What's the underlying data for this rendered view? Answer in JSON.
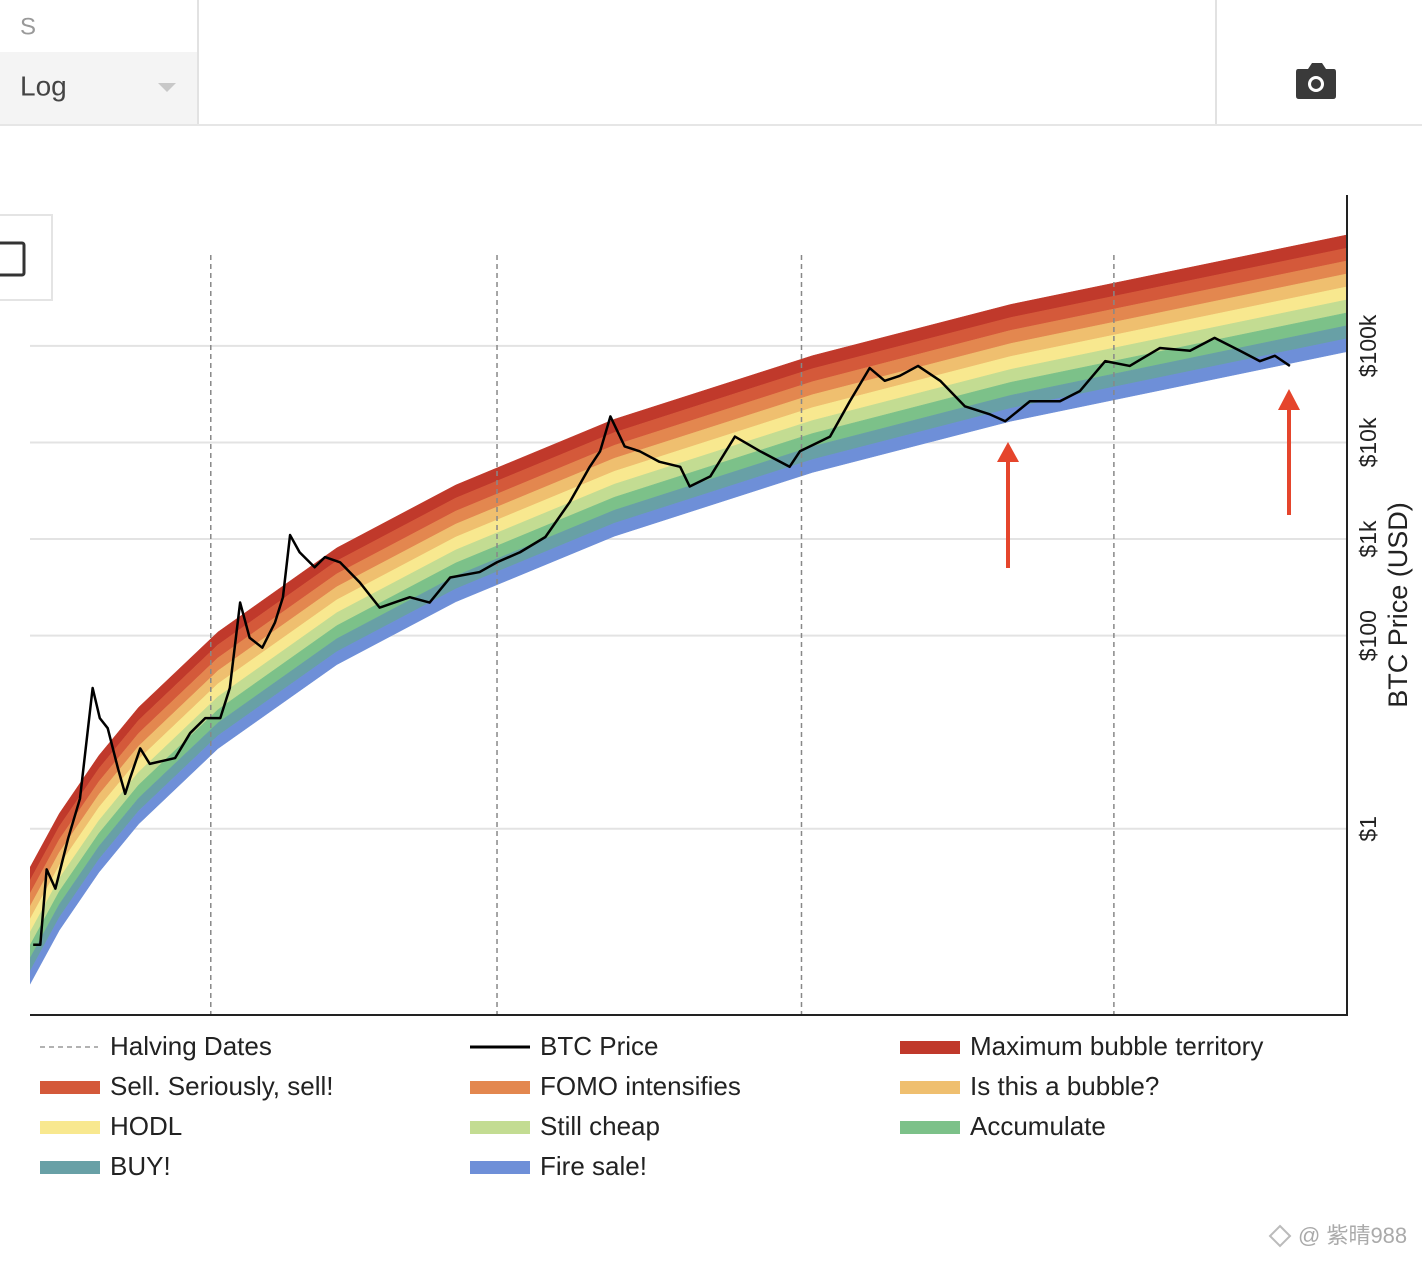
{
  "toolbar": {
    "partial_label": "S",
    "scale_select": "Log"
  },
  "chart_data": {
    "type": "line",
    "y_label": "BTC Price (USD)",
    "yscale": "log",
    "grid": true,
    "xlim": [
      2010.63,
      2027.24
    ],
    "ylim": [
      0.0118,
      3650000
    ],
    "yticks": [
      {
        "value": 1,
        "label": "$1"
      },
      {
        "value": 100,
        "label": "$100"
      },
      {
        "value": 1000,
        "label": "$1k"
      },
      {
        "value": 10000,
        "label": "$10k"
      },
      {
        "value": 100000,
        "label": "$100k"
      }
    ],
    "halvings": {
      "name": "Halving Dates",
      "x": [
        2012.91,
        2016.52,
        2020.36,
        2024.3
      ]
    },
    "series": [
      {
        "name": "BTC Price",
        "color": "#000000",
        "x": [
          2010.67,
          2010.76,
          2010.84,
          2010.95,
          2011.11,
          2011.26,
          2011.42,
          2011.51,
          2011.61,
          2011.74,
          2011.83,
          2011.89,
          2012.02,
          2012.14,
          2012.46,
          2012.65,
          2012.84,
          2013.03,
          2013.15,
          2013.28,
          2013.4,
          2013.56,
          2013.72,
          2013.82,
          2013.91,
          2014.03,
          2014.22,
          2014.35,
          2014.54,
          2014.79,
          2015.04,
          2015.42,
          2015.67,
          2015.93,
          2016.3,
          2016.52,
          2016.81,
          2017.13,
          2017.44,
          2017.69,
          2017.82,
          2017.95,
          2018.13,
          2018.32,
          2018.57,
          2018.83,
          2018.95,
          2019.21,
          2019.52,
          2019.84,
          2020.21,
          2020.34,
          2020.72,
          2020.97,
          2021.22,
          2021.41,
          2021.6,
          2021.83,
          2022.11,
          2022.42,
          2022.74,
          2022.93,
          2023.24,
          2023.62,
          2023.87,
          2024.19,
          2024.5,
          2024.88,
          2025.26,
          2025.57,
          2025.89,
          2026.14,
          2026.33,
          2026.52
        ],
        "values": [
          0.063,
          0.063,
          0.38,
          0.24,
          0.79,
          2.05,
          28.7,
          14,
          11,
          4.2,
          2.3,
          3.3,
          6.8,
          4.7,
          5.4,
          9.8,
          14,
          14,
          28.7,
          220,
          95,
          75,
          137,
          250,
          1100,
          730,
          510,
          650,
          575,
          355,
          195,
          250,
          220,
          400,
          455,
          575,
          730,
          1050,
          2430,
          5600,
          8100,
          18600,
          9100,
          8100,
          6300,
          5600,
          3500,
          4450,
          11500,
          8100,
          5600,
          8100,
          11500,
          26700,
          59000,
          43500,
          49000,
          62000,
          43500,
          23700,
          19500,
          16600,
          26700,
          26700,
          34000,
          69500,
          62000,
          95000,
          89000,
          121000,
          89000,
          69500,
          79000,
          62000
        ]
      }
    ],
    "x": [
      2010.63,
      2011,
      2011.5,
      2012,
      2013,
      2014.5,
      2016,
      2018,
      2020.5,
      2023,
      2027.24
    ],
    "bands": [
      {
        "name": "Maximum bubble territory",
        "color": "#c0392b",
        "high": [
          0.398,
          1.44,
          5.75,
          18.1,
          109,
          811,
          3630,
          17400,
          79300,
          269000,
          1410000
        ],
        "low": [
          0.292,
          1.06,
          4.22,
          13.3,
          80.3,
          595,
          2660,
          12700,
          58200,
          197000,
          1030000
        ]
      },
      {
        "name": "Sell. Seriously, sell!",
        "color": "#d4593a",
        "high": [
          0.292,
          1.06,
          4.22,
          13.3,
          80.3,
          595,
          2660,
          12700,
          58200,
          197000,
          1030000
        ],
        "low": [
          0.214,
          0.777,
          3.09,
          9.76,
          58.9,
          437,
          1950,
          9350,
          42700,
          145000,
          759000
        ]
      },
      {
        "name": "FOMO intensifies",
        "color": "#e3874f",
        "high": [
          0.214,
          0.777,
          3.09,
          9.76,
          58.9,
          437,
          1950,
          9350,
          42700,
          145000,
          759000
        ],
        "low": [
          0.157,
          0.57,
          2.27,
          7.17,
          43.3,
          321,
          1430,
          6860,
          31300,
          106000,
          557000
        ]
      },
      {
        "name": "Is this a bubble?",
        "color": "#efbf6f",
        "high": [
          0.157,
          0.57,
          2.27,
          7.17,
          43.3,
          321,
          1430,
          6860,
          31300,
          106000,
          557000
        ],
        "low": [
          0.116,
          0.418,
          1.67,
          5.26,
          31.7,
          235,
          1050,
          5030,
          23000,
          77900,
          409000
        ]
      },
      {
        "name": "HODL",
        "color": "#f8e88f",
        "high": [
          0.116,
          0.418,
          1.67,
          5.26,
          31.7,
          235,
          1050,
          5030,
          23000,
          77900,
          409000
        ],
        "low": [
          0.0848,
          0.307,
          1.22,
          3.86,
          23.3,
          173,
          772,
          3700,
          16900,
          57200,
          300000
        ]
      },
      {
        "name": "Still cheap",
        "color": "#c3dc92",
        "high": [
          0.0848,
          0.307,
          1.22,
          3.86,
          23.3,
          173,
          772,
          3700,
          16900,
          57200,
          300000
        ],
        "low": [
          0.0622,
          0.225,
          0.898,
          2.84,
          17.1,
          127,
          566,
          2710,
          12400,
          42000,
          220000
        ]
      },
      {
        "name": "Accumulate",
        "color": "#7cc189",
        "high": [
          0.0622,
          0.225,
          0.898,
          2.84,
          17.1,
          127,
          566,
          2710,
          12400,
          42000,
          220000
        ],
        "low": [
          0.0457,
          0.165,
          0.659,
          2.08,
          12.5,
          93,
          416,
          1990,
          9090,
          30800,
          162000
        ]
      },
      {
        "name": "BUY!",
        "color": "#68a0a6",
        "high": [
          0.0457,
          0.165,
          0.659,
          2.08,
          12.5,
          93,
          416,
          1990,
          9090,
          30800,
          162000
        ],
        "low": [
          0.0335,
          0.121,
          0.484,
          1.53,
          9.21,
          68.3,
          305,
          1460,
          6670,
          22600,
          119000
        ]
      },
      {
        "name": "Fire sale!",
        "color": "#6e8fd8",
        "high": [
          0.0335,
          0.121,
          0.484,
          1.53,
          9.21,
          68.3,
          305,
          1460,
          6670,
          22600,
          119000
        ],
        "low": [
          0.0246,
          0.0891,
          0.355,
          1.12,
          6.76,
          50.1,
          224,
          1070,
          4900,
          16600,
          87100
        ]
      }
    ]
  },
  "watermark": "@ 紫晴988"
}
